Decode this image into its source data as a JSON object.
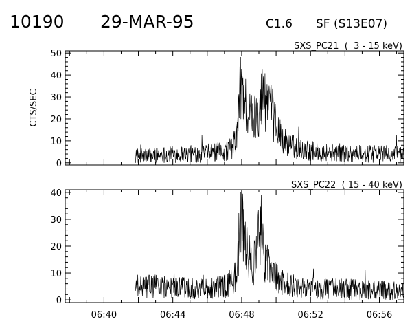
{
  "header": {
    "event_id": "10190",
    "date": "29-MAR-95",
    "goes_class": "C1.6",
    "flare_info": "SF (S13E07)"
  },
  "chart_data": [
    {
      "type": "line",
      "title": "SXS_PC21  (  3 - 15 keV)",
      "ylabel": "CTS/SEC",
      "xlabel": "",
      "xlim": [
        "06:37:45",
        "06:57:25"
      ],
      "ylim": [
        -1,
        51
      ],
      "yticks": [
        0,
        10,
        20,
        30,
        40,
        50
      ],
      "xtick_labels": [
        "06:40",
        "06:44",
        "06:48",
        "06:52",
        "06:56"
      ],
      "data_start": "06:41:50",
      "series": [
        {
          "x": [
            "06:41:50",
            "06:43:00",
            "06:44:00",
            "06:45:00",
            "06:46:00",
            "06:47:00",
            "06:47:30",
            "06:47:45",
            "06:47:53",
            "06:48:00",
            "06:48:10",
            "06:48:25",
            "06:48:40",
            "06:48:55",
            "06:49:05",
            "06:49:15",
            "06:49:30",
            "06:49:45",
            "06:50:00",
            "06:50:15",
            "06:50:45",
            "06:51:30",
            "06:52:30",
            "06:54:00",
            "06:55:30",
            "06:57:25"
          ],
          "values": [
            3,
            3.5,
            4,
            4,
            4.5,
            5,
            7,
            14,
            30,
            37,
            28,
            23,
            19,
            24,
            28,
            31,
            26,
            23,
            17,
            12,
            8,
            6,
            5,
            4.5,
            4,
            4
          ]
        }
      ]
    },
    {
      "type": "line",
      "title": "SXS_PC22  ( 15 - 40 keV)",
      "ylabel": "",
      "xlabel": "",
      "xlim": [
        "06:37:45",
        "06:57:25"
      ],
      "ylim": [
        -1,
        41
      ],
      "yticks": [
        0,
        10,
        20,
        30,
        40
      ],
      "xtick_labels": [
        "06:40",
        "06:44",
        "06:48",
        "06:52",
        "06:56"
      ],
      "data_start": "06:41:50",
      "series": [
        {
          "x": [
            "06:41:50",
            "06:43:00",
            "06:44:00",
            "06:45:00",
            "06:46:00",
            "06:47:00",
            "06:47:30",
            "06:47:45",
            "06:47:53",
            "06:48:00",
            "06:48:10",
            "06:48:25",
            "06:48:40",
            "06:48:55",
            "06:49:05",
            "06:49:15",
            "06:49:30",
            "06:49:45",
            "06:50:00",
            "06:50:15",
            "06:50:45",
            "06:51:30",
            "06:52:30",
            "06:54:00",
            "06:55:30",
            "06:57:25"
          ],
          "values": [
            5,
            5,
            4.5,
            4.5,
            4.5,
            5,
            7,
            12,
            26,
            32,
            21,
            16,
            13,
            20,
            25,
            18,
            13,
            10,
            8,
            6.5,
            5.5,
            5,
            4,
            4,
            3.5,
            3.5
          ]
        }
      ]
    }
  ]
}
